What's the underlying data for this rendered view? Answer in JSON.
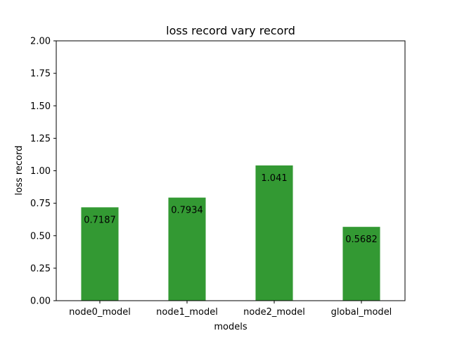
{
  "chart_data": {
    "type": "bar",
    "title": "loss record vary record",
    "xlabel": "models",
    "ylabel": "loss record",
    "categories": [
      "node0_model",
      "node1_model",
      "node2_model",
      "global_model"
    ],
    "values": [
      0.7187,
      0.7934,
      1.041,
      0.5682
    ],
    "value_labels": [
      "0.7187",
      "0.7934",
      "1.041",
      "0.5682"
    ],
    "ylim": [
      0,
      2.0
    ],
    "yticks": [
      "0.00",
      "0.25",
      "0.50",
      "0.75",
      "1.00",
      "1.25",
      "1.50",
      "1.75",
      "2.00"
    ],
    "bar_color": "#339933",
    "grid": false,
    "legend": "none"
  }
}
